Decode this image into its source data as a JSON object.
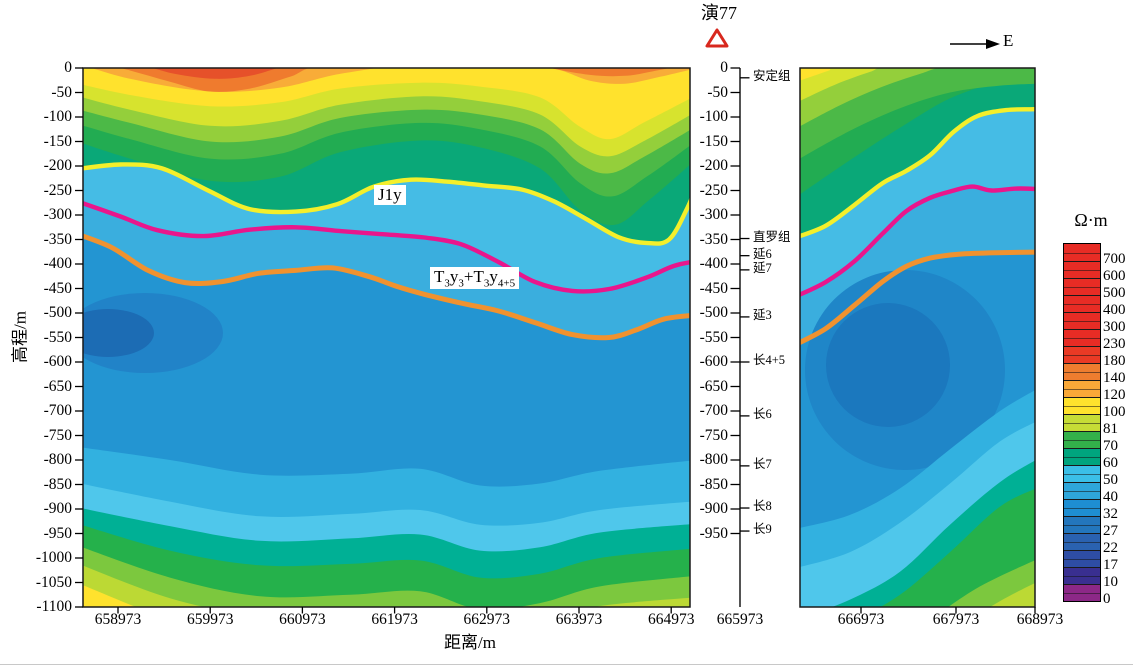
{
  "figure": {
    "well_label": "演77",
    "direction_label": "E",
    "y_axis_label": "高程/m",
    "x_axis_label": "距离/m",
    "colorbar_title": "Ω·m",
    "horizon_label_j1y": "J1y",
    "horizon_label_t": {
      "base1": "T",
      "sub1": "3",
      "base2": "y",
      "sub2": "3",
      "plus": "+",
      "base3": "T",
      "sub3": "3",
      "base4": "y",
      "sub4": "4+5"
    }
  },
  "chart_data": {
    "type": "contour",
    "subtype": "resistivity-elevation-cross-section",
    "x_axis": {
      "label": "距离/m",
      "left_panel_ticks": [
        658973,
        659973,
        660973,
        661973,
        662973,
        663973,
        664973
      ],
      "well_tick": 665973,
      "right_panel_ticks": [
        666973,
        667973,
        668973
      ]
    },
    "y_axis": {
      "label": "高程/m",
      "max_m": 0,
      "min_m": -1100,
      "tick_step_m": 50,
      "left_axis_ticks": [
        0,
        -50,
        -100,
        -150,
        -200,
        -250,
        -300,
        -350,
        -400,
        -450,
        -500,
        -550,
        -600,
        -650,
        -700,
        -750,
        -800,
        -850,
        -900,
        -950,
        -1000,
        -1050,
        -1100
      ],
      "well_axis_ticks": [
        0,
        -50,
        -100,
        -150,
        -200,
        -250,
        -300,
        -350,
        -400,
        -450,
        -500,
        -550,
        -600,
        -650,
        -700,
        -750,
        -800,
        -850,
        -900,
        -950
      ]
    },
    "well": {
      "name": "演77",
      "marker": "red-outlined-triangle",
      "location_m": 665973
    },
    "direction_arrow": "E",
    "resistivity_scale": {
      "unit": "Ω·m",
      "cells_top_to_bottom": [
        {
          "label": "700",
          "color": "#e72c25"
        },
        {
          "label": "600",
          "color": "#e72c25"
        },
        {
          "label": "500",
          "color": "#e72c25"
        },
        {
          "label": "400",
          "color": "#e72c25"
        },
        {
          "label": "300",
          "color": "#e72c25"
        },
        {
          "label": "230",
          "color": "#e72c25"
        },
        {
          "label": "180",
          "color": "#ea3a25"
        },
        {
          "label": "140",
          "color": "#ef7d2f"
        },
        {
          "label": "120",
          "color": "#f9a838"
        },
        {
          "label": "100",
          "color": "#ffe22d"
        },
        {
          "label": "81",
          "color": "#c6dc36"
        },
        {
          "label": "70",
          "color": "#33b04a"
        },
        {
          "label": "60",
          "color": "#00a57e"
        },
        {
          "label": "50",
          "color": "#3bbfe7"
        },
        {
          "label": "40",
          "color": "#2ea6da"
        },
        {
          "label": "32",
          "color": "#1e8ed2"
        },
        {
          "label": "27",
          "color": "#2376bc"
        },
        {
          "label": "22",
          "color": "#2a62b0"
        },
        {
          "label": "17",
          "color": "#2e4da4"
        },
        {
          "label": "10",
          "color": "#392f90"
        },
        {
          "label": "0",
          "color": "#8c2887"
        }
      ]
    },
    "strata_markers": [
      {
        "label": "安定组",
        "elevation_m": -20
      },
      {
        "label": "直罗组",
        "elevation_m": -348
      },
      {
        "label": "延6",
        "elevation_m": -383
      },
      {
        "label": "延7",
        "elevation_m": -412
      },
      {
        "label": "延3",
        "elevation_m": -508
      },
      {
        "label": "长4+5",
        "elevation_m": -600
      },
      {
        "label": "长6",
        "elevation_m": -710
      },
      {
        "label": "长7",
        "elevation_m": -812
      },
      {
        "label": "长8",
        "elevation_m": -898
      },
      {
        "label": "长9",
        "elevation_m": -945
      }
    ],
    "horizons": [
      {
        "name": "J1y",
        "line_color": "#f4ef2b",
        "points_left_panel": [
          [
            658500,
            -207
          ],
          [
            659000,
            -197
          ],
          [
            659450,
            -205
          ],
          [
            659950,
            -250
          ],
          [
            660400,
            -288
          ],
          [
            660900,
            -293
          ],
          [
            661350,
            -278
          ],
          [
            661750,
            -242
          ],
          [
            662150,
            -228
          ],
          [
            662550,
            -232
          ],
          [
            662950,
            -240
          ],
          [
            663350,
            -248
          ],
          [
            663700,
            -272
          ],
          [
            664050,
            -308
          ],
          [
            664400,
            -345
          ],
          [
            664700,
            -357
          ],
          [
            664950,
            -350
          ],
          [
            665150,
            -285
          ],
          [
            665250,
            -238
          ]
        ],
        "points_right_panel": [
          [
            666300,
            -345
          ],
          [
            666600,
            -322
          ],
          [
            666900,
            -280
          ],
          [
            667200,
            -235
          ],
          [
            667450,
            -210
          ],
          [
            667700,
            -178
          ],
          [
            667950,
            -130
          ],
          [
            668200,
            -98
          ],
          [
            668500,
            -86
          ],
          [
            668800,
            -84
          ],
          [
            669100,
            -82
          ]
        ]
      },
      {
        "name": "",
        "line_color": "#e9168c",
        "points_left_panel": [
          [
            658500,
            -270
          ],
          [
            659000,
            -303
          ],
          [
            659400,
            -331
          ],
          [
            659900,
            -343
          ],
          [
            660400,
            -330
          ],
          [
            660900,
            -325
          ],
          [
            661400,
            -333
          ],
          [
            661900,
            -340
          ],
          [
            662300,
            -346
          ],
          [
            662700,
            -360
          ],
          [
            663100,
            -396
          ],
          [
            663500,
            -437
          ],
          [
            663900,
            -455
          ],
          [
            664300,
            -451
          ],
          [
            664700,
            -428
          ],
          [
            665000,
            -404
          ],
          [
            665250,
            -394
          ]
        ],
        "points_right_panel": [
          [
            666300,
            -465
          ],
          [
            666600,
            -437
          ],
          [
            666900,
            -395
          ],
          [
            667200,
            -338
          ],
          [
            667450,
            -292
          ],
          [
            667700,
            -265
          ],
          [
            667950,
            -250
          ],
          [
            668150,
            -242
          ],
          [
            668350,
            -250
          ],
          [
            668650,
            -246
          ],
          [
            669100,
            -250
          ]
        ]
      },
      {
        "name": "T3y3+T3y4+5",
        "line_color": "#f0922f",
        "points_left_panel": [
          [
            658500,
            -337
          ],
          [
            658900,
            -366
          ],
          [
            659300,
            -413
          ],
          [
            659700,
            -438
          ],
          [
            660100,
            -436
          ],
          [
            660500,
            -419
          ],
          [
            660900,
            -413
          ],
          [
            661300,
            -408
          ],
          [
            661700,
            -426
          ],
          [
            662000,
            -446
          ],
          [
            662300,
            -462
          ],
          [
            662700,
            -480
          ],
          [
            663100,
            -496
          ],
          [
            663500,
            -520
          ],
          [
            663900,
            -544
          ],
          [
            664300,
            -550
          ],
          [
            664600,
            -534
          ],
          [
            664900,
            -512
          ],
          [
            665250,
            -504
          ]
        ],
        "points_right_panel": [
          [
            666300,
            -563
          ],
          [
            666600,
            -532
          ],
          [
            666900,
            -485
          ],
          [
            667200,
            -436
          ],
          [
            667450,
            -405
          ],
          [
            667700,
            -388
          ],
          [
            668000,
            -380
          ],
          [
            668400,
            -377
          ],
          [
            669100,
            -375
          ]
        ]
      }
    ]
  }
}
